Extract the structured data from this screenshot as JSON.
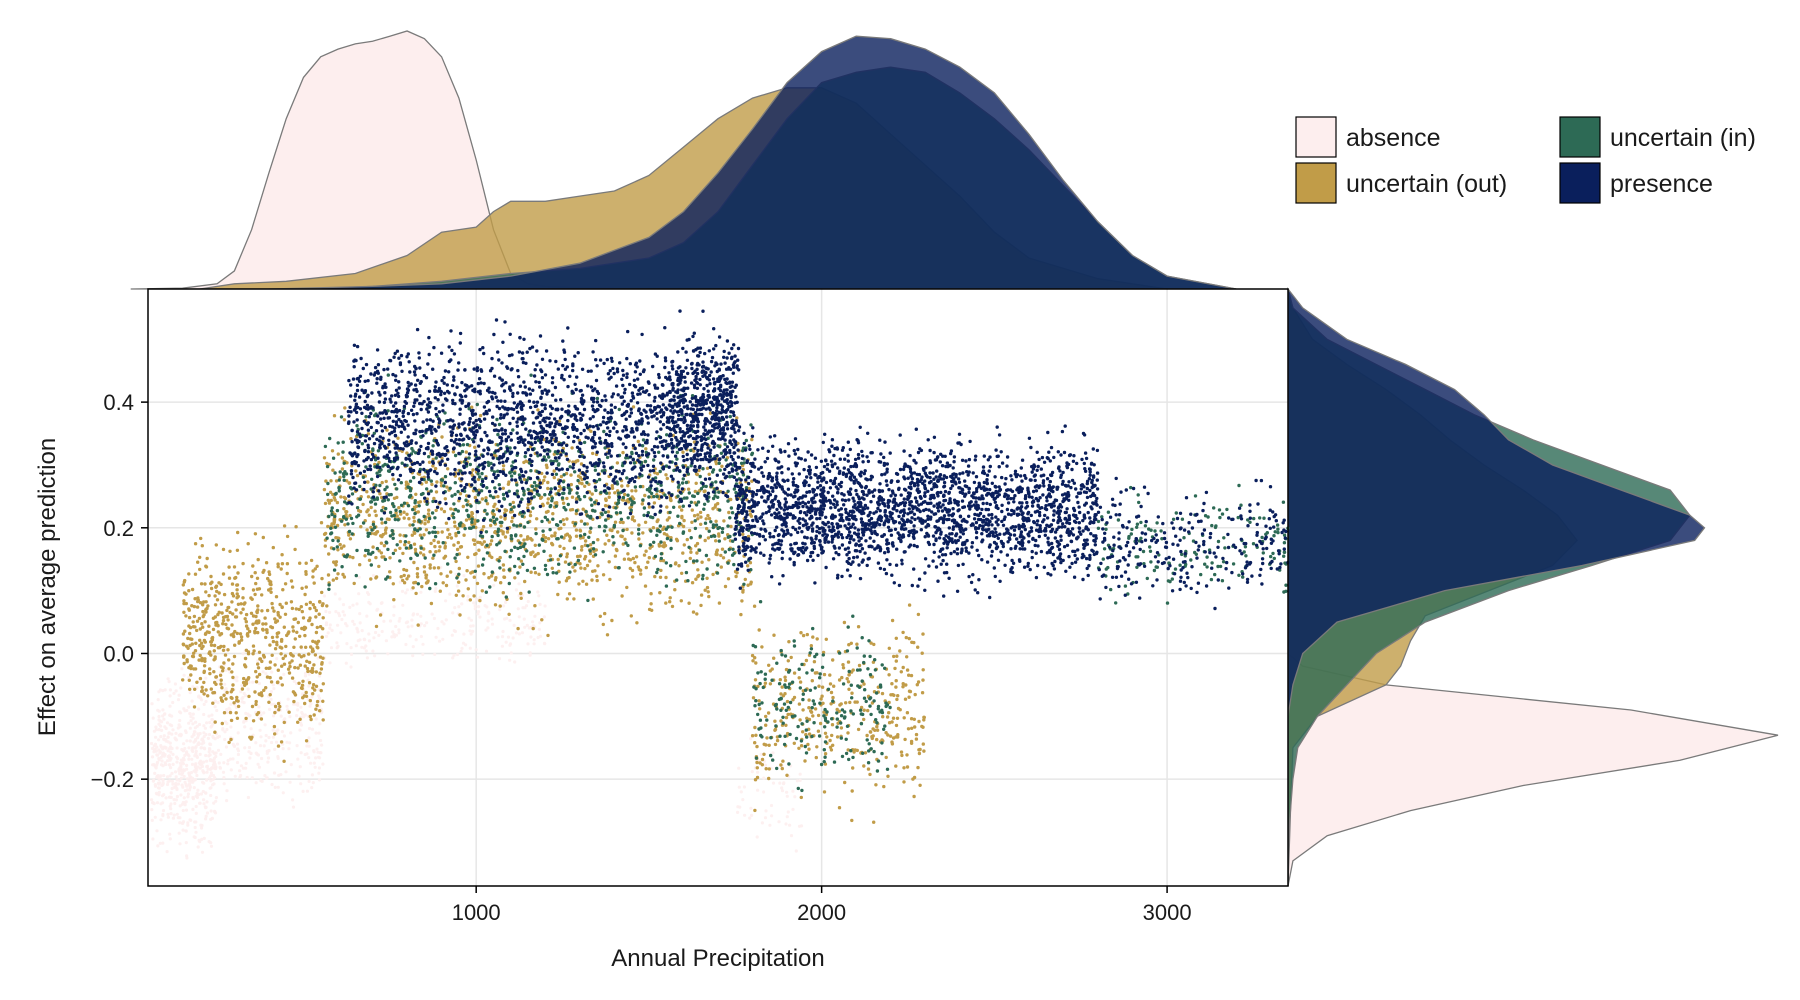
{
  "chart_data": {
    "type": "scatter",
    "title": "",
    "xlabel": "Annual Precipitation",
    "ylabel": "Effect on average prediction",
    "xlim": [
      50,
      3350
    ],
    "ylim": [
      -0.37,
      0.58
    ],
    "xticks": [
      1000,
      2000,
      3000
    ],
    "yticks": [
      -0.2,
      0.0,
      0.2,
      0.4
    ],
    "xtick_labels": [
      "1000",
      "2000",
      "3000"
    ],
    "ytick_labels": [
      "−0.2",
      "0.0",
      "0.2",
      "0.4"
    ],
    "grid": true,
    "legend_position": "top-right",
    "series": [
      {
        "name": "absence",
        "color": "#fdeeee",
        "clusters": [
          [
            60,
            250,
            -0.35,
            0.0,
            550
          ],
          [
            250,
            560,
            -0.3,
            0.05,
            300
          ],
          [
            560,
            1200,
            -0.05,
            0.15,
            250
          ],
          [
            1750,
            1950,
            -0.35,
            -0.1,
            60
          ]
        ],
        "density_x": [
          [
            0,
            0
          ],
          [
            150,
            0.003
          ],
          [
            250,
            0.02
          ],
          [
            300,
            0.07
          ],
          [
            350,
            0.23
          ],
          [
            400,
            0.45
          ],
          [
            450,
            0.66
          ],
          [
            500,
            0.82
          ],
          [
            550,
            0.9
          ],
          [
            600,
            0.93
          ],
          [
            650,
            0.95
          ],
          [
            700,
            0.96
          ],
          [
            750,
            0.98
          ],
          [
            800,
            1.0
          ],
          [
            850,
            0.97
          ],
          [
            900,
            0.9
          ],
          [
            950,
            0.74
          ],
          [
            1000,
            0.5
          ],
          [
            1050,
            0.23
          ],
          [
            1100,
            0.06
          ],
          [
            1150,
            0.02
          ],
          [
            1200,
            0.01
          ],
          [
            1300,
            0.004
          ],
          [
            1500,
            0.0
          ]
        ],
        "density_y": [
          [
            -0.37,
            0.0
          ],
          [
            -0.33,
            0.01
          ],
          [
            -0.29,
            0.08
          ],
          [
            -0.25,
            0.25
          ],
          [
            -0.21,
            0.48
          ],
          [
            -0.17,
            0.8
          ],
          [
            -0.13,
            1.0
          ],
          [
            -0.09,
            0.7
          ],
          [
            -0.05,
            0.2
          ],
          [
            -0.02,
            0.03
          ],
          [
            0.0,
            0.0
          ]
        ]
      },
      {
        "name": "uncertain (out)",
        "color": "#c19c48",
        "clusters": [
          [
            150,
            260,
            -0.15,
            0.22,
            180
          ],
          [
            260,
            560,
            -0.2,
            0.25,
            450
          ],
          [
            560,
            1800,
            0.0,
            0.42,
            1200
          ],
          [
            1800,
            2300,
            -0.28,
            0.1,
            380
          ]
        ],
        "density_x": [
          [
            200,
            0.0
          ],
          [
            300,
            0.02
          ],
          [
            450,
            0.03
          ],
          [
            650,
            0.06
          ],
          [
            800,
            0.13
          ],
          [
            900,
            0.22
          ],
          [
            1000,
            0.24
          ],
          [
            1050,
            0.3
          ],
          [
            1100,
            0.34
          ],
          [
            1200,
            0.34
          ],
          [
            1300,
            0.36
          ],
          [
            1400,
            0.38
          ],
          [
            1500,
            0.44
          ],
          [
            1600,
            0.55
          ],
          [
            1700,
            0.66
          ],
          [
            1800,
            0.74
          ],
          [
            1900,
            0.78
          ],
          [
            2000,
            0.78
          ],
          [
            2100,
            0.72
          ],
          [
            2200,
            0.6
          ],
          [
            2300,
            0.48
          ],
          [
            2400,
            0.36
          ],
          [
            2500,
            0.22
          ],
          [
            2600,
            0.12
          ],
          [
            2800,
            0.04
          ],
          [
            3000,
            0.0
          ]
        ],
        "density_y": [
          [
            -0.37,
            0.0
          ],
          [
            -0.25,
            0.005
          ],
          [
            -0.15,
            0.01
          ],
          [
            -0.1,
            0.06
          ],
          [
            -0.05,
            0.2
          ],
          [
            -0.02,
            0.23
          ],
          [
            0.02,
            0.25
          ],
          [
            0.06,
            0.28
          ],
          [
            0.1,
            0.41
          ],
          [
            0.14,
            0.54
          ],
          [
            0.18,
            0.59
          ],
          [
            0.22,
            0.55
          ],
          [
            0.26,
            0.48
          ],
          [
            0.3,
            0.4
          ],
          [
            0.34,
            0.33
          ],
          [
            0.38,
            0.27
          ],
          [
            0.42,
            0.2
          ],
          [
            0.46,
            0.12
          ],
          [
            0.5,
            0.05
          ],
          [
            0.55,
            0.01
          ],
          [
            0.58,
            0.0
          ]
        ]
      },
      {
        "name": "uncertain (in)",
        "color": "#2d6a55",
        "clusters": [
          [
            560,
            1800,
            0.05,
            0.45,
            900
          ],
          [
            1800,
            2200,
            -0.25,
            0.1,
            200
          ],
          [
            2800,
            3350,
            0.05,
            0.28,
            160
          ]
        ],
        "density_x": [
          [
            500,
            0.0
          ],
          [
            700,
            0.01
          ],
          [
            900,
            0.03
          ],
          [
            1100,
            0.06
          ],
          [
            1300,
            0.08
          ],
          [
            1500,
            0.12
          ],
          [
            1600,
            0.18
          ],
          [
            1700,
            0.3
          ],
          [
            1800,
            0.48
          ],
          [
            1900,
            0.66
          ],
          [
            2000,
            0.8
          ],
          [
            2100,
            0.84
          ],
          [
            2200,
            0.86
          ],
          [
            2300,
            0.84
          ],
          [
            2400,
            0.76
          ],
          [
            2500,
            0.66
          ],
          [
            2600,
            0.54
          ],
          [
            2700,
            0.4
          ],
          [
            2800,
            0.26
          ],
          [
            2900,
            0.13
          ],
          [
            3000,
            0.05
          ],
          [
            3200,
            0.0
          ]
        ],
        "density_y": [
          [
            -0.37,
            0.0
          ],
          [
            -0.28,
            0.002
          ],
          [
            -0.2,
            0.01
          ],
          [
            -0.15,
            0.02
          ],
          [
            -0.1,
            0.06
          ],
          [
            -0.05,
            0.12
          ],
          [
            0.0,
            0.18
          ],
          [
            0.05,
            0.28
          ],
          [
            0.1,
            0.45
          ],
          [
            0.14,
            0.62
          ],
          [
            0.18,
            0.78
          ],
          [
            0.22,
            0.82
          ],
          [
            0.26,
            0.78
          ],
          [
            0.3,
            0.64
          ],
          [
            0.34,
            0.5
          ],
          [
            0.38,
            0.38
          ],
          [
            0.42,
            0.28
          ],
          [
            0.46,
            0.18
          ],
          [
            0.5,
            0.08
          ],
          [
            0.55,
            0.01
          ],
          [
            0.58,
            0.0
          ]
        ]
      },
      {
        "name": "presence",
        "color": "#0a1f5c",
        "clusters": [
          [
            630,
            1750,
            0.18,
            0.55,
            1800
          ],
          [
            1750,
            2800,
            0.08,
            0.38,
            2200
          ],
          [
            2800,
            3350,
            0.05,
            0.3,
            250
          ],
          [
            1560,
            1760,
            0.25,
            0.55,
            350
          ]
        ],
        "density_x": [
          [
            400,
            0.0
          ],
          [
            700,
            0.01
          ],
          [
            900,
            0.02
          ],
          [
            1100,
            0.05
          ],
          [
            1300,
            0.1
          ],
          [
            1500,
            0.2
          ],
          [
            1600,
            0.3
          ],
          [
            1700,
            0.45
          ],
          [
            1800,
            0.62
          ],
          [
            1900,
            0.8
          ],
          [
            2000,
            0.92
          ],
          [
            2100,
            0.98
          ],
          [
            2200,
            0.97
          ],
          [
            2300,
            0.93
          ],
          [
            2400,
            0.86
          ],
          [
            2500,
            0.76
          ],
          [
            2600,
            0.6
          ],
          [
            2700,
            0.42
          ],
          [
            2800,
            0.26
          ],
          [
            2900,
            0.13
          ],
          [
            3000,
            0.05
          ],
          [
            3200,
            0.0
          ]
        ],
        "density_y": [
          [
            -0.37,
            0.0
          ],
          [
            -0.1,
            0.0
          ],
          [
            -0.05,
            0.01
          ],
          [
            0.0,
            0.03
          ],
          [
            0.05,
            0.1
          ],
          [
            0.1,
            0.32
          ],
          [
            0.14,
            0.6
          ],
          [
            0.18,
            0.83
          ],
          [
            0.2,
            0.85
          ],
          [
            0.22,
            0.82
          ],
          [
            0.26,
            0.68
          ],
          [
            0.3,
            0.54
          ],
          [
            0.34,
            0.45
          ],
          [
            0.38,
            0.4
          ],
          [
            0.42,
            0.34
          ],
          [
            0.46,
            0.24
          ],
          [
            0.5,
            0.12
          ],
          [
            0.55,
            0.03
          ],
          [
            0.58,
            0.0
          ]
        ]
      }
    ]
  }
}
